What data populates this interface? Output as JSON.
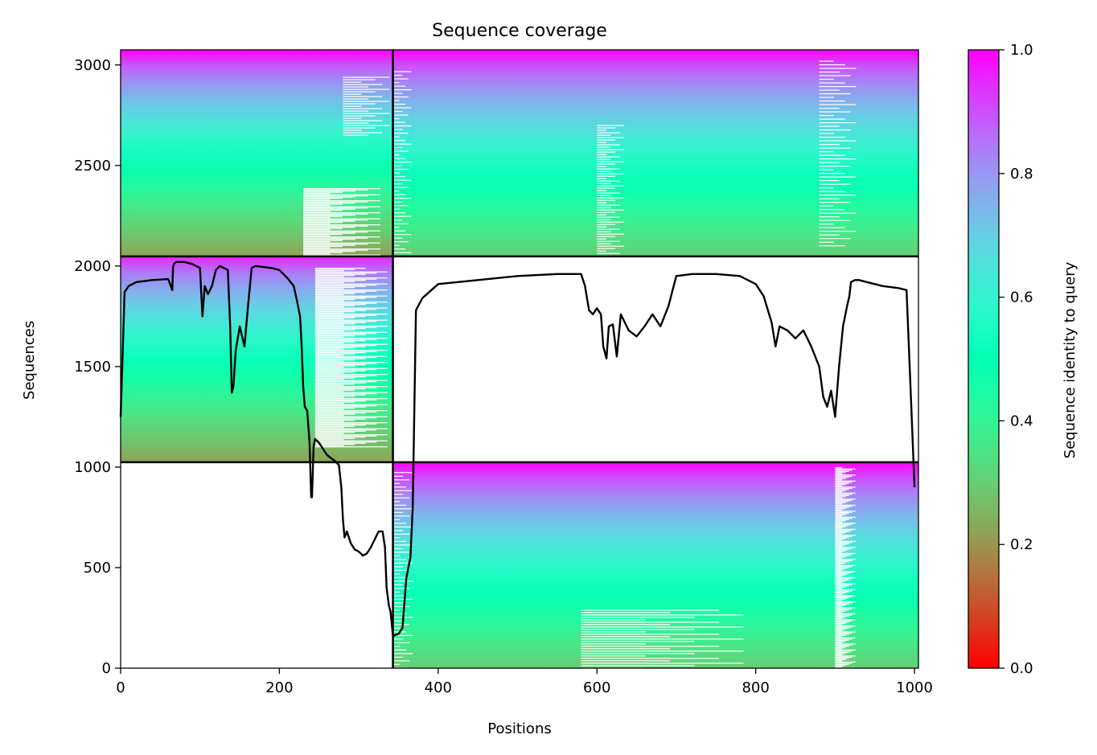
{
  "chart_data": {
    "type": "heatmap",
    "title": "Sequence coverage",
    "xlabel": "Positions",
    "ylabel": "Sequences",
    "xlim": [
      0,
      1005
    ],
    "ylim": [
      0,
      3075
    ],
    "x_ticks": [
      "0",
      "200",
      "400",
      "600",
      "800",
      "1000"
    ],
    "y_ticks": [
      "0",
      "500",
      "1000",
      "1500",
      "2000",
      "2500",
      "3000"
    ],
    "colorbar": {
      "label": "Sequence identity to query",
      "range": [
        0,
        1
      ],
      "ticks": [
        "0.0",
        "0.2",
        "0.4",
        "0.6",
        "0.8",
        "1.0"
      ],
      "colormap": "rainbow_r"
    },
    "chain_boundary_position": 343,
    "msa_blocks": [
      {
        "name": "block-top-left",
        "x": [
          0,
          343
        ],
        "y": [
          2048,
          3075
        ],
        "identity_top": 1.0,
        "identity_bottom": 0.22
      },
      {
        "name": "block-top-right",
        "x": [
          343,
          1005
        ],
        "y": [
          2048,
          3075
        ],
        "identity_top": 1.0,
        "identity_bottom": 0.3
      },
      {
        "name": "block-middle-left",
        "x": [
          0,
          343
        ],
        "y": [
          1024,
          2048
        ],
        "identity_top": 0.95,
        "identity_bottom": 0.22
      },
      {
        "name": "block-bottom-right",
        "x": [
          343,
          1005
        ],
        "y": [
          0,
          1024
        ],
        "identity_top": 1.0,
        "identity_bottom": 0.3
      }
    ],
    "separator_lines_y": [
      1024,
      2048
    ],
    "separator_lines_x": [
      343
    ],
    "coverage_line": {
      "x": [
        0,
        2,
        5,
        10,
        20,
        40,
        60,
        65,
        66,
        67,
        70,
        80,
        90,
        100,
        103,
        106,
        110,
        115,
        120,
        125,
        130,
        135,
        138,
        140,
        142,
        145,
        150,
        153,
        156,
        160,
        165,
        170,
        190,
        200,
        210,
        218,
        222,
        226,
        228,
        230,
        232,
        235,
        238,
        240,
        241,
        243,
        245,
        250,
        260,
        270,
        275,
        278,
        280,
        282,
        285,
        290,
        295,
        300,
        305,
        310,
        315,
        320,
        325,
        330,
        333,
        335,
        338,
        340,
        343,
        346,
        350,
        355,
        360,
        365,
        368,
        372,
        380,
        400,
        450,
        500,
        550,
        580,
        585,
        590,
        595,
        600,
        605,
        608,
        612,
        615,
        620,
        625,
        630,
        640,
        650,
        660,
        670,
        680,
        690,
        700,
        720,
        750,
        780,
        800,
        810,
        820,
        825,
        830,
        840,
        850,
        860,
        870,
        880,
        885,
        890,
        895,
        900,
        905,
        910,
        915,
        918,
        920,
        925,
        930,
        940,
        960,
        980,
        990,
        995,
        1000,
        1002,
        1004
      ],
      "y": [
        1250,
        1500,
        1870,
        1900,
        1920,
        1930,
        1935,
        1880,
        1990,
        2010,
        2020,
        2020,
        2010,
        1990,
        1750,
        1900,
        1860,
        1900,
        1980,
        2000,
        1990,
        1980,
        1700,
        1370,
        1400,
        1580,
        1700,
        1650,
        1600,
        1780,
        1990,
        2000,
        1990,
        1980,
        1940,
        1900,
        1830,
        1750,
        1600,
        1400,
        1300,
        1280,
        1120,
        850,
        850,
        1100,
        1140,
        1120,
        1060,
        1030,
        1010,
        900,
        740,
        650,
        680,
        620,
        590,
        580,
        560,
        570,
        600,
        640,
        680,
        680,
        600,
        400,
        310,
        280,
        160,
        165,
        170,
        200,
        450,
        550,
        800,
        1780,
        1840,
        1910,
        1930,
        1950,
        1960,
        1960,
        1900,
        1780,
        1760,
        1790,
        1760,
        1600,
        1540,
        1700,
        1710,
        1550,
        1760,
        1680,
        1650,
        1700,
        1760,
        1700,
        1800,
        1950,
        1960,
        1960,
        1950,
        1910,
        1850,
        1720,
        1600,
        1700,
        1680,
        1640,
        1680,
        1600,
        1500,
        1350,
        1300,
        1380,
        1250,
        1500,
        1700,
        1800,
        1850,
        1920,
        1930,
        1930,
        1920,
        1900,
        1890,
        1880,
        1400,
        900
      ]
    }
  }
}
